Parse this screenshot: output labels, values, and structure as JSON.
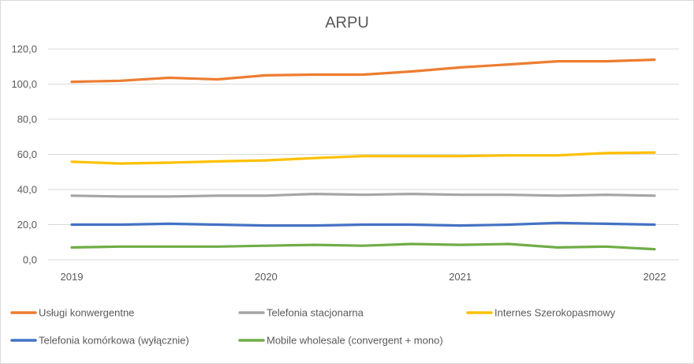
{
  "chart_data": {
    "type": "line",
    "title": "ARPU",
    "xlabel": "",
    "ylabel": "",
    "ylim": [
      0,
      120
    ],
    "y_ticks": [
      "0,0",
      "20,0",
      "40,0",
      "60,0",
      "80,0",
      "100,0",
      "120,0"
    ],
    "y_tick_values": [
      0,
      20,
      40,
      60,
      80,
      100,
      120
    ],
    "x": [
      "2019 Q1",
      "2019 Q2",
      "2019 Q3",
      "2019 Q4",
      "2020 Q1",
      "2020 Q2",
      "2020 Q3",
      "2020 Q4",
      "2021 Q1",
      "2021 Q2",
      "2021 Q3",
      "2021 Q4",
      "2022 Q1"
    ],
    "x_ticks": [
      {
        "label": "2019",
        "index": 0
      },
      {
        "label": "2020",
        "index": 4
      },
      {
        "label": "2021",
        "index": 8
      },
      {
        "label": "2022",
        "index": 12
      }
    ],
    "grid": true,
    "legend_position": "bottom",
    "series": [
      {
        "name": "Usługi konwergentne",
        "color": "#ED7D31",
        "values": [
          101.3,
          101.9,
          103.6,
          102.7,
          105.0,
          105.4,
          105.4,
          107.2,
          109.5,
          111.2,
          113.0,
          113.0,
          113.9
        ]
      },
      {
        "name": "Telefonia stacjonarna",
        "color": "#A5A5A5",
        "values": [
          36.5,
          36.0,
          36.0,
          36.5,
          36.5,
          37.5,
          37.0,
          37.5,
          37.0,
          37.0,
          36.5,
          37.0,
          36.5
        ]
      },
      {
        "name": "Internes Szerokopasmowy",
        "color": "#FFC000",
        "values": [
          55.8,
          54.8,
          55.3,
          56.0,
          56.6,
          57.9,
          59.0,
          59.0,
          59.0,
          59.4,
          59.4,
          60.7,
          61.1
        ]
      },
      {
        "name": "Telefonia komórkowa (wyłącznie)",
        "color": "#4472C4",
        "values": [
          20.0,
          20.0,
          20.5,
          20.0,
          19.5,
          19.5,
          20.0,
          20.0,
          19.5,
          20.0,
          21.0,
          20.5,
          20.0
        ]
      },
      {
        "name": "Mobile wholesale (convergent + mono)",
        "color": "#70AD47",
        "values": [
          7.0,
          7.5,
          7.5,
          7.5,
          8.0,
          8.5,
          8.0,
          9.0,
          8.5,
          9.0,
          7.0,
          7.5,
          6.0
        ]
      }
    ]
  }
}
